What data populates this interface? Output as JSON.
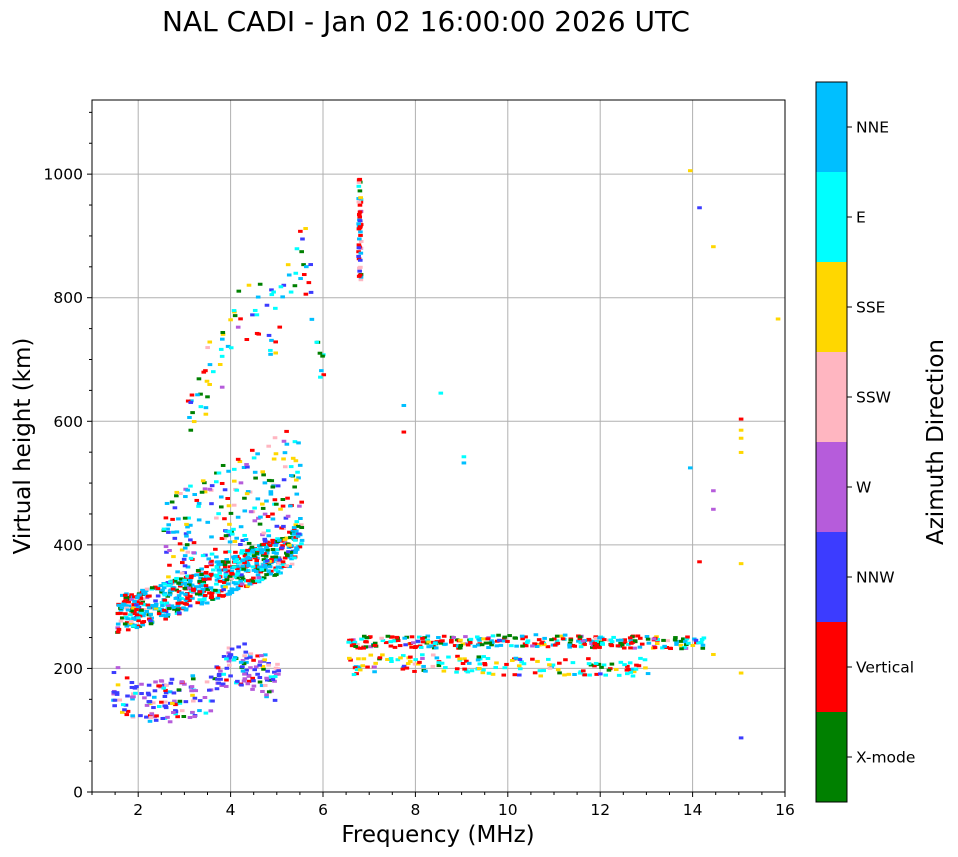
{
  "chart_data": {
    "type": "scatter",
    "title": "NAL CADI - Jan 02 16:00:00 2026 UTC",
    "xlabel": "Frequency (MHz)",
    "ylabel": "Virtual height (km)",
    "xlim": [
      1,
      16
    ],
    "ylim": [
      0,
      1120
    ],
    "xticks": [
      2,
      4,
      6,
      8,
      10,
      12,
      14,
      16
    ],
    "yticks": [
      0,
      200,
      400,
      600,
      800,
      1000
    ],
    "grid": true,
    "colorbar": {
      "label": "Azimuth Direction",
      "categories": [
        {
          "name": "X-mode",
          "color": "#008000"
        },
        {
          "name": "Vertical",
          "color": "#ff0000"
        },
        {
          "name": "NNW",
          "color": "#3c3cff"
        },
        {
          "name": "W",
          "color": "#b65cdb"
        },
        {
          "name": "SSW",
          "color": "#ffb6c1"
        },
        {
          "name": "SSE",
          "color": "#ffd700"
        },
        {
          "name": "E",
          "color": "#00ffff"
        },
        {
          "name": "NNE",
          "color": "#00bfff"
        }
      ]
    },
    "traces": [
      {
        "desc": "E-region trace",
        "x": [
          1.4,
          1.8,
          2.2,
          2.6,
          3.0,
          3.5,
          4.0,
          4.5,
          5.0
        ],
        "y": [
          180,
          150,
          150,
          150,
          155,
          160,
          215,
          200,
          180
        ],
        "spread": 35
      },
      {
        "desc": "F-region O trace",
        "x": [
          1.5,
          2.0,
          2.5,
          3.0,
          3.5,
          4.0,
          4.5,
          5.0,
          5.3,
          5.5
        ],
        "y": [
          290,
          300,
          310,
          325,
          340,
          355,
          370,
          385,
          400,
          430
        ],
        "spread": 30
      },
      {
        "desc": "F-region spread",
        "x": [
          2.5,
          3.0,
          3.5,
          4.0,
          4.5,
          5.0,
          5.5
        ],
        "y": [
          400,
          420,
          440,
          460,
          480,
          500,
          520
        ],
        "spread": 80
      },
      {
        "desc": "Es band",
        "x": [
          6.5,
          7.0,
          8.0,
          9.0,
          10.0,
          11.0,
          12.0,
          13.0,
          14.2
        ],
        "y": [
          245,
          245,
          245,
          245,
          247,
          247,
          245,
          245,
          243
        ],
        "spread": 10
      },
      {
        "desc": "Es lower band",
        "x": [
          6.5,
          7.0,
          8.0,
          9.0,
          10.0,
          11.0,
          12.0,
          13.0
        ],
        "y": [
          205,
          210,
          210,
          210,
          205,
          205,
          205,
          205
        ],
        "spread": 15
      },
      {
        "desc": "vertical column",
        "x": [
          6.75
        ],
        "y": [
          830,
          1000
        ],
        "spread": 0
      },
      {
        "desc": "sparse high echoes",
        "x": [
          3.0,
          3.5,
          4.0,
          4.3,
          5.0,
          5.5,
          6.0
        ],
        "y": [
          620,
          680,
          740,
          790,
          760,
          900,
          640
        ],
        "spread": 60
      }
    ]
  }
}
